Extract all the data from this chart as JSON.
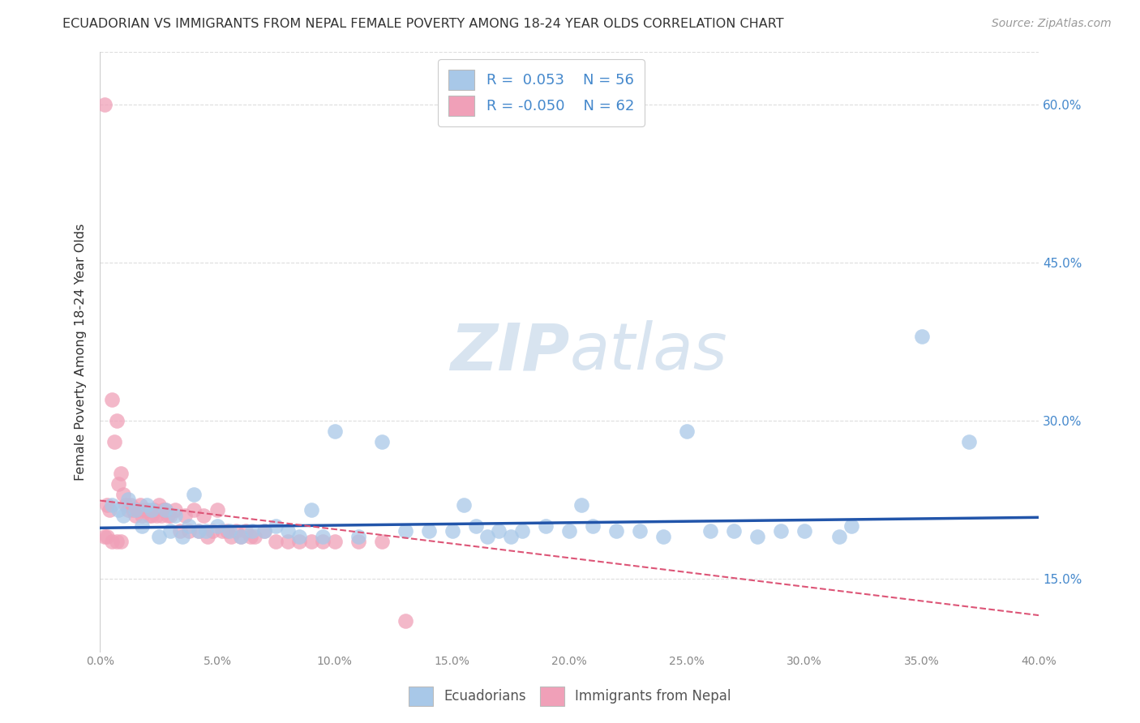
{
  "title": "ECUADORIAN VS IMMIGRANTS FROM NEPAL FEMALE POVERTY AMONG 18-24 YEAR OLDS CORRELATION CHART",
  "source": "Source: ZipAtlas.com",
  "ylabel": "Female Poverty Among 18-24 Year Olds",
  "xlim": [
    0.0,
    0.4
  ],
  "ylim": [
    0.08,
    0.65
  ],
  "xticks": [
    0.0,
    0.05,
    0.1,
    0.15,
    0.2,
    0.25,
    0.3,
    0.35,
    0.4
  ],
  "xtick_labels": [
    "0.0%",
    "5.0%",
    "10.0%",
    "15.0%",
    "20.0%",
    "25.0%",
    "30.0%",
    "35.0%",
    "40.0%"
  ],
  "yticks": [
    0.15,
    0.3,
    0.45,
    0.6
  ],
  "ytick_labels": [
    "15.0%",
    "30.0%",
    "45.0%",
    "60.0%"
  ],
  "legend_R1": "0.053",
  "legend_N1": "56",
  "legend_R2": "-0.050",
  "legend_N2": "62",
  "blue_color": "#A8C8E8",
  "pink_color": "#F0A0B8",
  "line_blue": "#2255AA",
  "line_pink": "#DD5577",
  "title_color": "#333333",
  "axis_label_color": "#333333",
  "tick_label_color": "#888888",
  "right_tick_color": "#4488CC",
  "watermark_color": "#D8E4F0",
  "grid_color": "#DDDDDD",
  "background_color": "#FFFFFF",
  "blue_line_start_y": 0.198,
  "blue_line_end_y": 0.208,
  "pink_line_start_y": 0.224,
  "pink_line_end_y": 0.115,
  "ecuadorians_x": [
    0.005,
    0.008,
    0.01,
    0.012,
    0.015,
    0.018,
    0.02,
    0.022,
    0.025,
    0.028,
    0.03,
    0.032,
    0.035,
    0.038,
    0.04,
    0.042,
    0.045,
    0.05,
    0.055,
    0.06,
    0.065,
    0.07,
    0.075,
    0.08,
    0.085,
    0.09,
    0.095,
    0.1,
    0.11,
    0.12,
    0.13,
    0.14,
    0.15,
    0.16,
    0.17,
    0.18,
    0.19,
    0.2,
    0.21,
    0.22,
    0.23,
    0.24,
    0.25,
    0.26,
    0.27,
    0.28,
    0.29,
    0.3,
    0.32,
    0.35,
    0.37,
    0.155,
    0.205,
    0.315,
    0.165,
    0.175
  ],
  "ecuadorians_y": [
    0.22,
    0.215,
    0.21,
    0.225,
    0.215,
    0.2,
    0.22,
    0.215,
    0.19,
    0.215,
    0.195,
    0.21,
    0.19,
    0.2,
    0.23,
    0.195,
    0.195,
    0.2,
    0.195,
    0.19,
    0.195,
    0.195,
    0.2,
    0.195,
    0.19,
    0.215,
    0.19,
    0.29,
    0.19,
    0.28,
    0.195,
    0.195,
    0.195,
    0.2,
    0.195,
    0.195,
    0.2,
    0.195,
    0.2,
    0.195,
    0.195,
    0.19,
    0.29,
    0.195,
    0.195,
    0.19,
    0.195,
    0.195,
    0.2,
    0.38,
    0.28,
    0.22,
    0.22,
    0.19,
    0.19,
    0.19
  ],
  "nepal_x": [
    0.002,
    0.003,
    0.004,
    0.005,
    0.006,
    0.007,
    0.008,
    0.009,
    0.01,
    0.011,
    0.012,
    0.013,
    0.014,
    0.015,
    0.016,
    0.017,
    0.018,
    0.019,
    0.02,
    0.021,
    0.022,
    0.023,
    0.024,
    0.025,
    0.026,
    0.027,
    0.028,
    0.029,
    0.03,
    0.032,
    0.034,
    0.036,
    0.038,
    0.04,
    0.042,
    0.044,
    0.046,
    0.048,
    0.05,
    0.052,
    0.054,
    0.056,
    0.058,
    0.06,
    0.062,
    0.064,
    0.066,
    0.07,
    0.075,
    0.08,
    0.085,
    0.09,
    0.095,
    0.1,
    0.11,
    0.12,
    0.13,
    0.002,
    0.003,
    0.005,
    0.007,
    0.009
  ],
  "nepal_y": [
    0.6,
    0.22,
    0.215,
    0.32,
    0.28,
    0.3,
    0.24,
    0.25,
    0.23,
    0.22,
    0.215,
    0.22,
    0.215,
    0.21,
    0.215,
    0.22,
    0.21,
    0.215,
    0.215,
    0.21,
    0.21,
    0.215,
    0.21,
    0.22,
    0.21,
    0.215,
    0.215,
    0.21,
    0.21,
    0.215,
    0.195,
    0.21,
    0.195,
    0.215,
    0.195,
    0.21,
    0.19,
    0.195,
    0.215,
    0.195,
    0.195,
    0.19,
    0.195,
    0.19,
    0.195,
    0.19,
    0.19,
    0.195,
    0.185,
    0.185,
    0.185,
    0.185,
    0.185,
    0.185,
    0.185,
    0.185,
    0.11,
    0.19,
    0.19,
    0.185,
    0.185,
    0.185
  ]
}
